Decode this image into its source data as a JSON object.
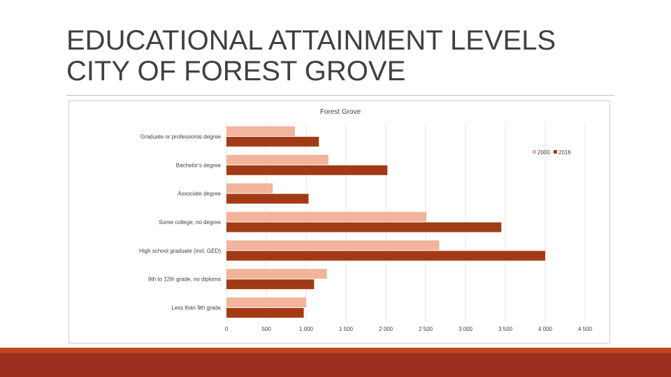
{
  "slide": {
    "title_line1": "EDUCATIONAL ATTAINMENT LEVELS",
    "title_line2": "CITY OF FOREST GROVE"
  },
  "colors": {
    "series_2000": "#f2b49b",
    "series_2016": "#a33a16",
    "gridline": "#e6e6e6",
    "band_top": "#c0461e",
    "band_bottom": "#9c2e1f"
  },
  "chart_data": {
    "type": "bar",
    "orientation": "horizontal",
    "title": "Forest Grove",
    "categories": [
      "Graduate or professional degree",
      "Bachelor's degree",
      "Associate degree",
      "Some college, no degree",
      "High school graduate (incl. GED)",
      "9th to 12th grade, no diploma",
      "Less than 9th grade"
    ],
    "series": [
      {
        "name": "2000",
        "values": [
          860,
          1280,
          580,
          2510,
          2670,
          1260,
          1000
        ]
      },
      {
        "name": "2016",
        "values": [
          1160,
          2020,
          1030,
          3450,
          4000,
          1100,
          970
        ]
      }
    ],
    "xlim": [
      0,
      4500
    ],
    "xticks": [
      0,
      500,
      1000,
      1500,
      2000,
      2500,
      3000,
      3500,
      4000,
      4500
    ],
    "xtick_labels": [
      "0",
      "500",
      "1 000",
      "1 500",
      "2 000",
      "2 500",
      "3 000",
      "3 500",
      "4 000",
      "4 500"
    ],
    "grid": true,
    "legend_position": "top-right"
  }
}
